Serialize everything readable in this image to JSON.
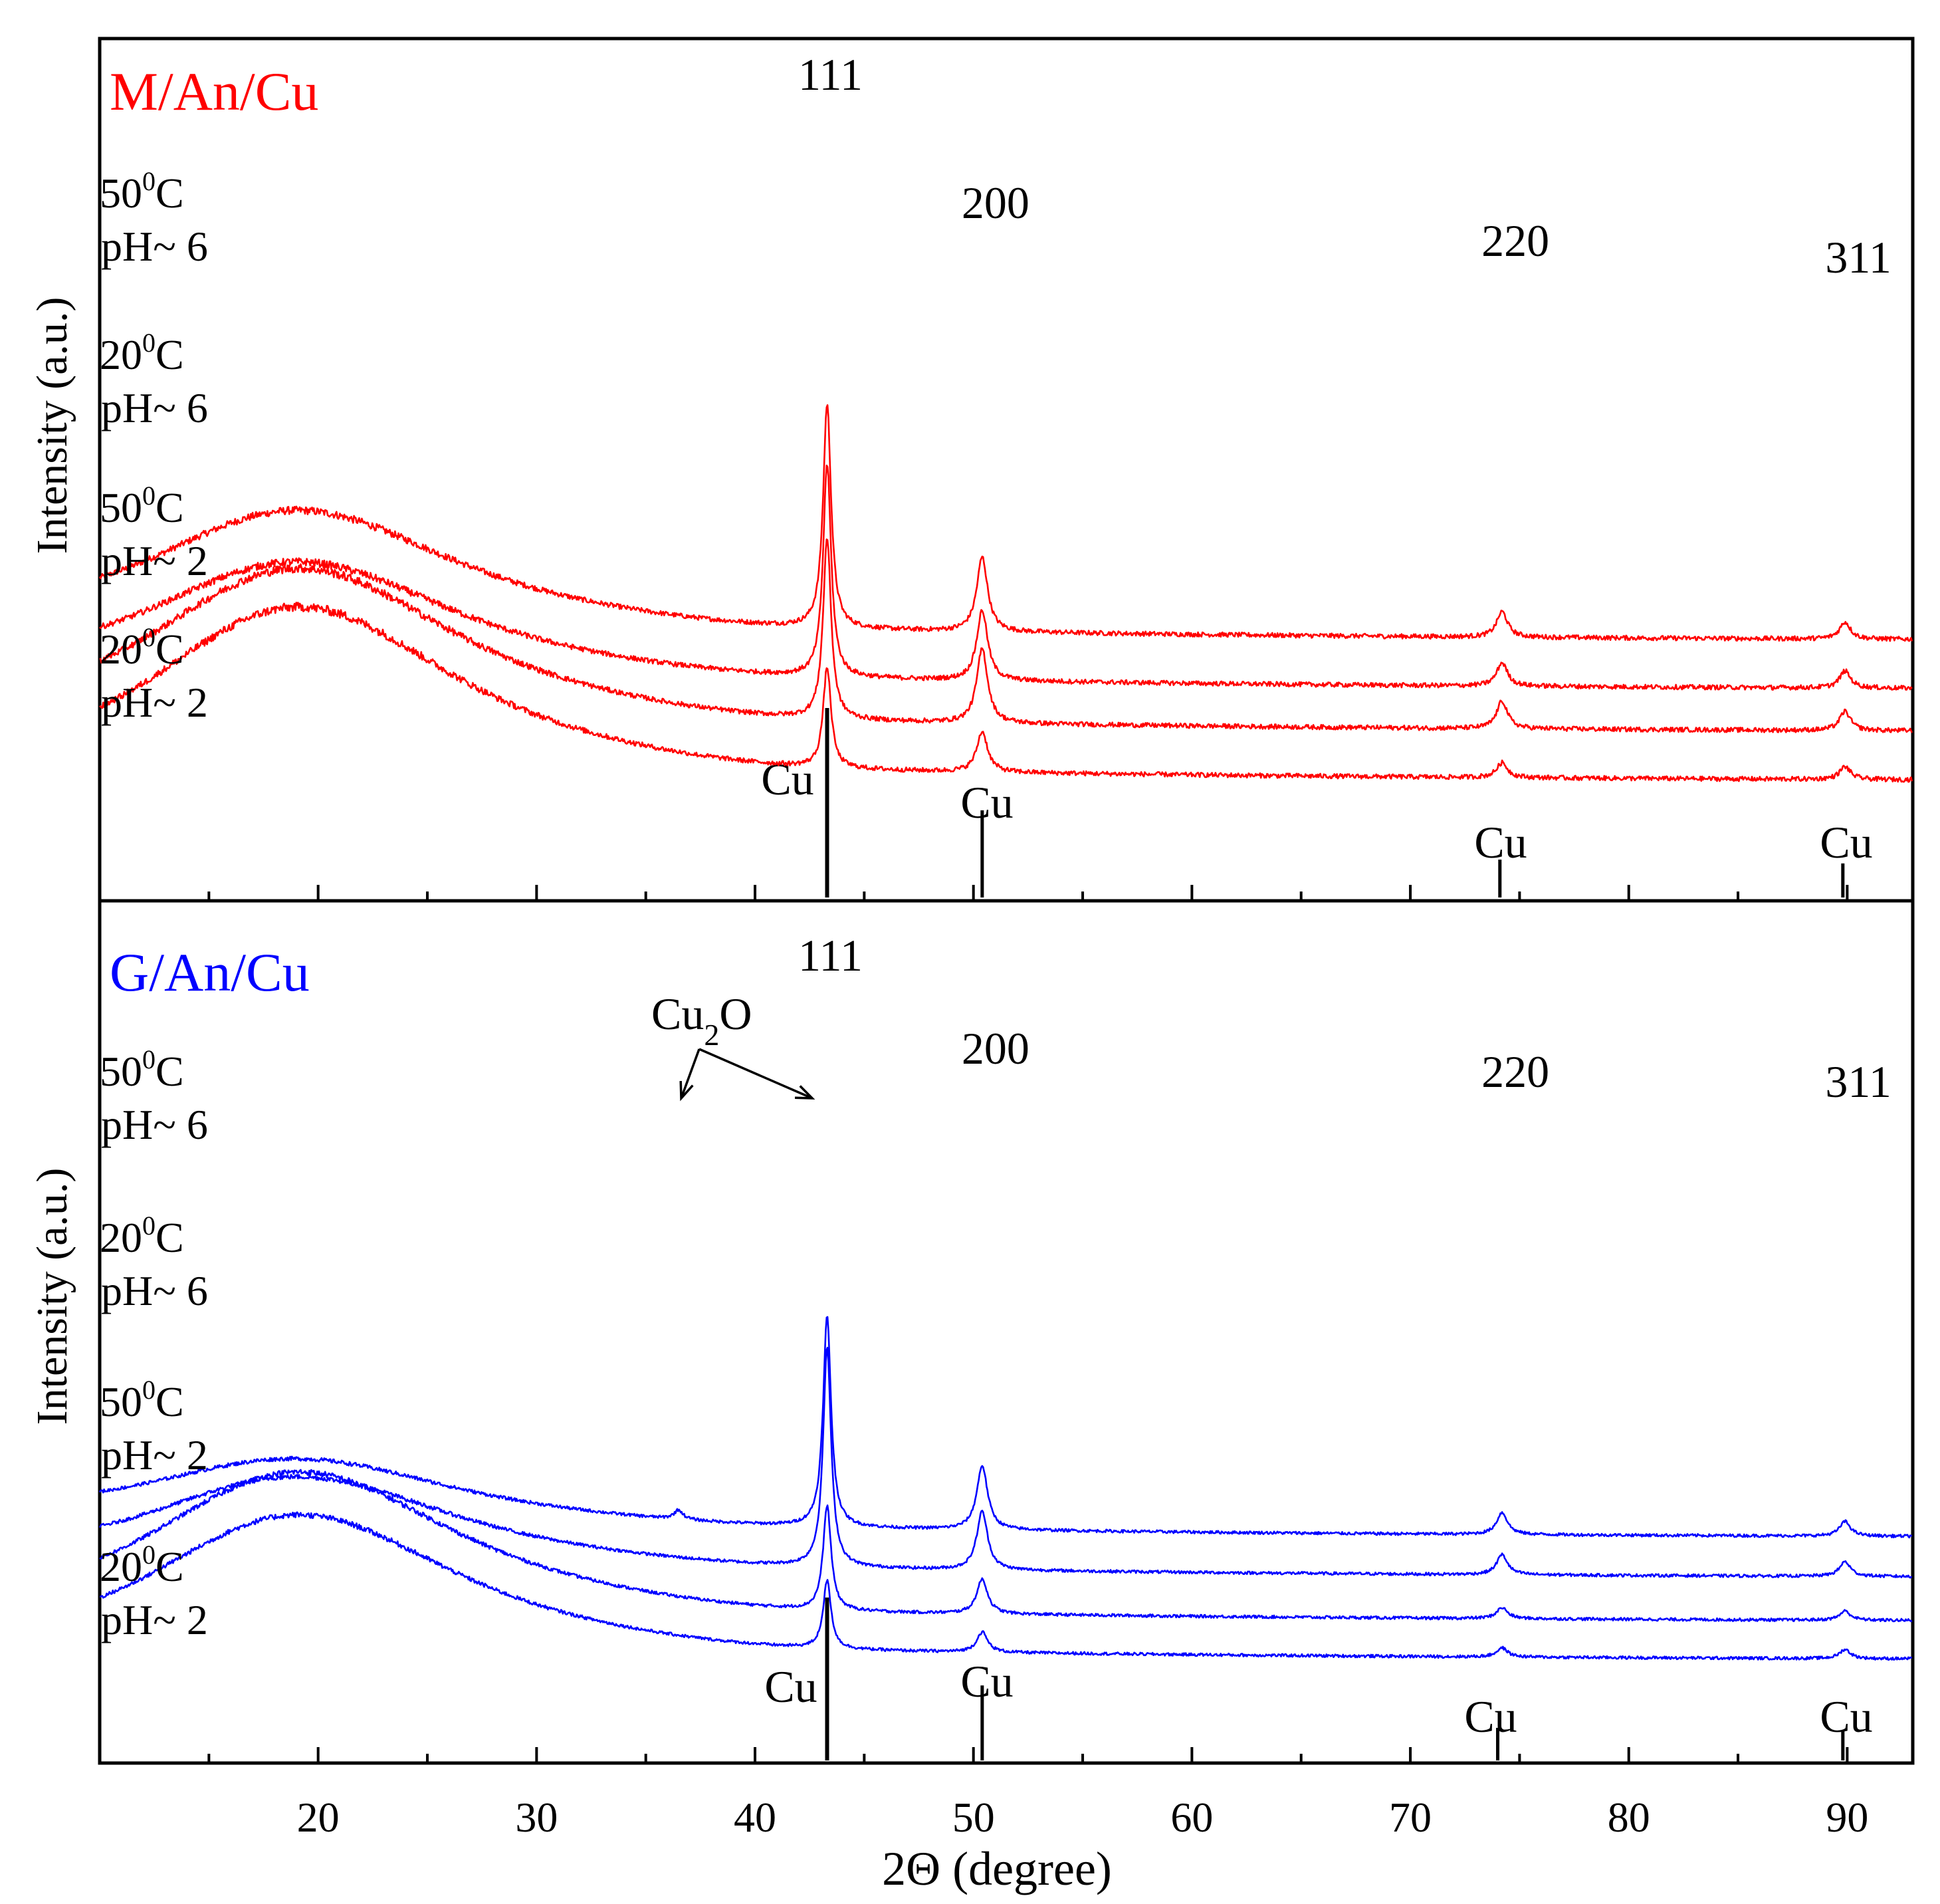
{
  "chart_data": {
    "type": "line",
    "xlabel": "2Θ (degree)",
    "xlim": [
      10,
      93
    ],
    "xticks": [
      20,
      30,
      40,
      50,
      60,
      70,
      80,
      90
    ],
    "xtick_labels": [
      "20",
      "30",
      "40",
      "50",
      "60",
      "70",
      "80",
      "90"
    ],
    "panels": [
      {
        "title": "M/An/Cu",
        "color": "#ff0000",
        "ylabel": "Intensity (a.u.)",
        "series": [
          {
            "name": "50°C pH~6",
            "label_temp": "50",
            "label_temp_sup": "0",
            "label_temp_unit": "C",
            "label_ph": "pH~ 6",
            "baseline": 70,
            "hump": 40,
            "peaks": {
              "111": 105,
              "200": 35,
              "220": 12,
              "311": 8
            }
          },
          {
            "name": "20°C pH~6",
            "label_temp": "20",
            "label_temp_sup": "0",
            "label_temp_unit": "C",
            "label_ph": "pH~ 6",
            "baseline": 47,
            "hump": 39,
            "peaks": {
              "111": 100,
              "200": 33,
              "220": 11,
              "311": 8
            }
          },
          {
            "name": "50°C pH~2",
            "label_temp": "50",
            "label_temp_sup": "0",
            "label_temp_unit": "C",
            "label_ph": "pH~ 2",
            "baseline": 27,
            "hump": 53,
            "peaks": {
              "111": 85,
              "200": 35,
              "220": 13,
              "311": 9
            }
          },
          {
            "name": "20°C pH~2",
            "label_temp": "20",
            "label_temp_sup": "0",
            "label_temp_unit": "C",
            "label_ph": "pH~ 2",
            "baseline": 4,
            "hump": 57,
            "peaks": {
              "111": 47,
              "200": 19,
              "220": 7,
              "311": 6
            }
          }
        ],
        "peak_labels": [
          {
            "hkl": "111",
            "x": 43.3
          },
          {
            "hkl": "200",
            "x": 50.4
          },
          {
            "hkl": "220",
            "x": 74.2
          },
          {
            "hkl": "311",
            "x": 89.9
          }
        ],
        "reference": {
          "name": "Cu",
          "peaks": [
            {
              "x": 43.3,
              "height": 100,
              "label": "Cu"
            },
            {
              "x": 50.4,
              "height": 46,
              "label": "Cu"
            },
            {
              "x": 74.1,
              "height": 20,
              "label": "Cu"
            },
            {
              "x": 89.8,
              "height": 18,
              "label": "Cu"
            }
          ]
        }
      },
      {
        "title": "G/An/Cu",
        "color": "#0000ff",
        "ylabel": "Intensity (a.u.)",
        "series": [
          {
            "name": "50°C pH~6",
            "label_temp": "50",
            "label_temp_sup": "0",
            "label_temp_unit": "C",
            "label_ph": "pH~ 6",
            "baseline": 70,
            "hump": 25,
            "peaks": {
              "111": 115,
              "200": 35,
              "220": 12,
              "311": 8
            },
            "cu2o": 5
          },
          {
            "name": "20°C pH~6",
            "label_temp": "20",
            "label_temp_sup": "0",
            "label_temp_unit": "C",
            "label_ph": "pH~ 6",
            "baseline": 48,
            "hump": 35,
            "peaks": {
              "111": 120,
              "200": 32,
              "220": 11,
              "311": 8
            }
          },
          {
            "name": "50°C pH~2",
            "label_temp": "50",
            "label_temp_sup": "0",
            "label_temp_unit": "C",
            "label_ph": "pH~ 2",
            "baseline": 24,
            "hump": 57,
            "peaks": {
              "111": 57,
              "200": 19,
              "220": 6,
              "311": 5
            }
          },
          {
            "name": "20°C pH~2",
            "label_temp": "20",
            "label_temp_sup": "0",
            "label_temp_unit": "C",
            "label_ph": "pH~ 2",
            "baseline": 3,
            "hump": 55,
            "peaks": {
              "111": 37,
              "200": 11,
              "220": 5,
              "311": 5
            }
          }
        ],
        "peak_labels": [
          {
            "hkl": "111",
            "x": 43.3
          },
          {
            "hkl": "200",
            "x": 50.4
          },
          {
            "hkl": "220",
            "x": 74.2
          },
          {
            "hkl": "311",
            "x": 89.9
          }
        ],
        "extra_annotation": {
          "text": "Cu",
          "sub": "2",
          "tail": "O",
          "targets": [
            36.5,
            42.8
          ]
        },
        "reference": {
          "name": "Cu",
          "peaks": [
            {
              "x": 43.3,
              "height": 100,
              "label": "Cu"
            },
            {
              "x": 50.4,
              "height": 46,
              "label": "Cu"
            },
            {
              "x": 74.0,
              "height": 20,
              "label": "Cu"
            },
            {
              "x": 89.8,
              "height": 18,
              "label": "Cu"
            }
          ]
        }
      }
    ]
  }
}
